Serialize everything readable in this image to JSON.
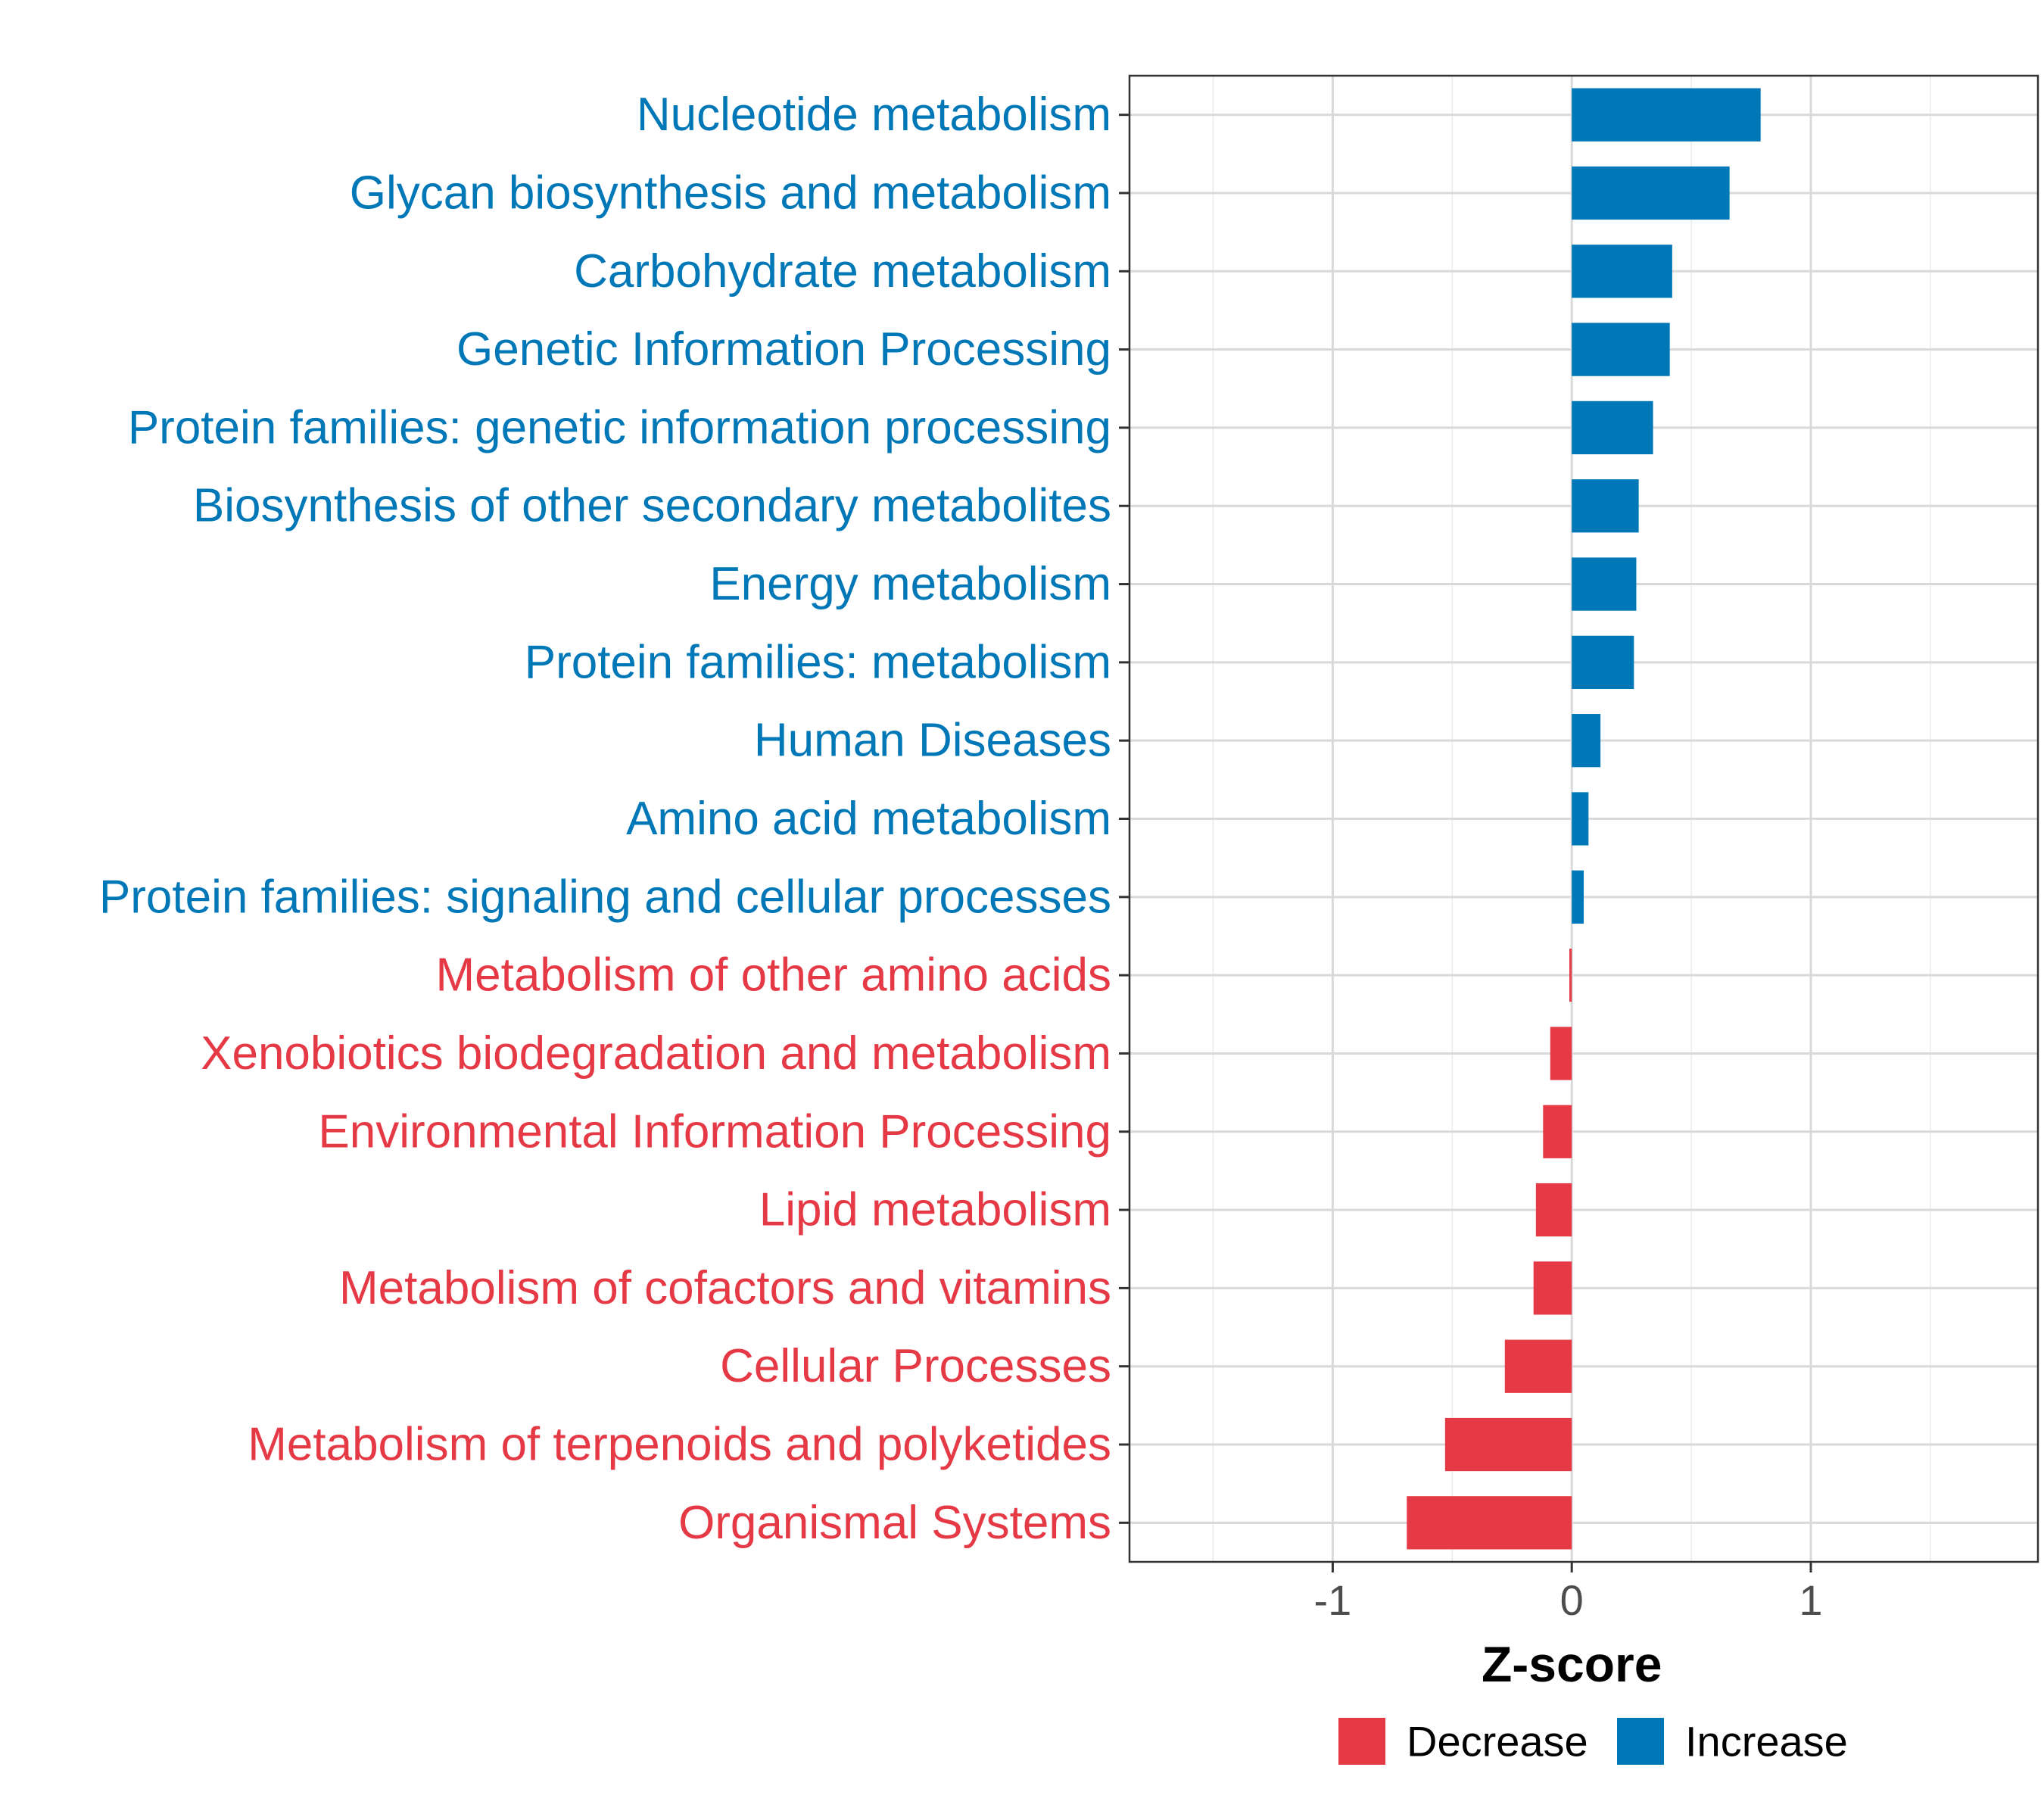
{
  "chart_data": {
    "type": "bar",
    "orientation": "horizontal",
    "categories": [
      "Nucleotide metabolism",
      "Glycan biosynthesis and metabolism",
      "Carbohydrate metabolism",
      "Genetic Information Processing",
      "Protein families: genetic information processing",
      "Biosynthesis of other secondary metabolites",
      "Energy metabolism",
      "Protein families: metabolism",
      "Human Diseases",
      "Amino acid metabolism",
      "Protein families: signaling and cellular processes",
      "Metabolism of other amino acids",
      "Xenobiotics biodegradation and metabolism",
      "Environmental Information Processing",
      "Lipid metabolism",
      "Metabolism of cofactors and vitamins",
      "Cellular Processes",
      "Metabolism of terpenoids and polyketides",
      "Organismal Systems"
    ],
    "values": [
      0.79,
      0.66,
      0.42,
      0.41,
      0.34,
      0.28,
      0.27,
      0.26,
      0.12,
      0.07,
      0.05,
      -0.01,
      -0.09,
      -0.12,
      -0.15,
      -0.16,
      -0.28,
      -0.53,
      -0.69
    ],
    "groups": [
      "Increase",
      "Increase",
      "Increase",
      "Increase",
      "Increase",
      "Increase",
      "Increase",
      "Increase",
      "Increase",
      "Increase",
      "Increase",
      "Decrease",
      "Decrease",
      "Decrease",
      "Decrease",
      "Decrease",
      "Decrease",
      "Decrease",
      "Decrease"
    ],
    "colors": {
      "Decrease": "#E63946",
      "Increase": "#0077B6"
    },
    "xlabel": "Z-score",
    "ylabel": "",
    "xlim": [
      -1.85,
      1.95
    ],
    "xticks": [
      -1,
      0,
      1
    ],
    "xtick_labels": [
      "-1",
      "0",
      "1"
    ],
    "grid": true,
    "legend": {
      "position": "bottom",
      "entries": [
        {
          "label": "Decrease",
          "color": "#E63946"
        },
        {
          "label": "Increase",
          "color": "#0077B6"
        }
      ]
    }
  }
}
